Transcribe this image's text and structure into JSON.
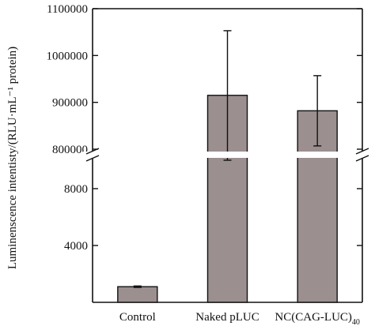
{
  "chart_data": {
    "type": "bar",
    "title": "",
    "xlabel": "",
    "ylabel": "Luminenscence intentisty/(RLU·mL⁻¹ protein)",
    "categories": [
      "Control",
      "Naked pLUC",
      "NC(CAG-LUC)"
    ],
    "category_subscripts": [
      "",
      "",
      "40"
    ],
    "values": [
      1100,
      915000,
      882000
    ],
    "error": [
      50,
      138000,
      75000
    ],
    "broken_axis": true,
    "ylim_lower": [
      0,
      10000
    ],
    "ylim_upper": [
      800000,
      1100000
    ],
    "yticks_lower": [
      4000,
      8000
    ],
    "ytick_labels_lower": [
      "4000",
      "8000"
    ],
    "yticks_upper": [
      800000,
      900000,
      1000000,
      1100000
    ],
    "ytick_labels_upper": [
      "800000",
      "900000",
      "1000000",
      "1100000"
    ],
    "bar_color": "#9b8f8f",
    "grid": false,
    "legend": "none"
  }
}
